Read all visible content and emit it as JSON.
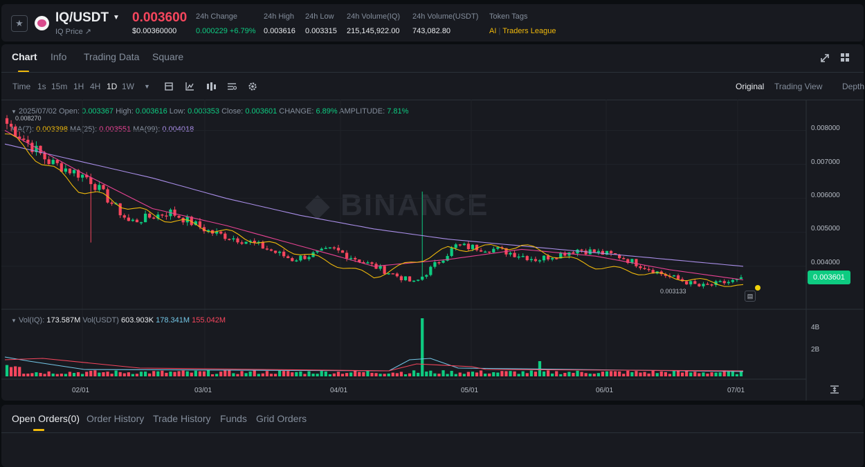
{
  "header": {
    "pair": "IQ/USDT",
    "sub": "IQ Price ↗",
    "price": "0.003600",
    "usd_price": "$0.00360000",
    "stats": [
      {
        "label": "24h Change",
        "value": "0.000229 +6.79%"
      },
      {
        "label": "24h High",
        "value": "0.003616"
      },
      {
        "label": "24h Low",
        "value": "0.003315"
      },
      {
        "label": "24h Volume(IQ)",
        "value": "215,145,922.00"
      },
      {
        "label": "24h Volume(USDT)",
        "value": "743,082.80"
      }
    ],
    "token_tags_label": "Token Tags",
    "tags": [
      "AI",
      "Traders League"
    ]
  },
  "tabs": [
    "Chart",
    "Info",
    "Trading Data",
    "Square"
  ],
  "intervals": [
    "Time",
    "1s",
    "15m",
    "1H",
    "4H",
    "1D",
    "1W"
  ],
  "active_interval": "1D",
  "views": [
    "Original",
    "Trading View",
    "Depth"
  ],
  "ohlc": {
    "date": "2025/07/02",
    "open_label": "Open:",
    "open": "0.003367",
    "high_label": "High:",
    "high": "0.003616",
    "low_label": "Low:",
    "low": "0.003353",
    "close_label": "Close:",
    "close": "0.003601",
    "change_label": "CHANGE:",
    "change": "6.89%",
    "amp_label": "AMPLITUDE:",
    "amp": "7.81%"
  },
  "ma": {
    "ma7_label": "MA(7):",
    "ma7": "0.003398",
    "ma25_label": "MA(25):",
    "ma25": "0.003551",
    "ma99_label": "MA(99):",
    "ma99": "0.004018"
  },
  "vol": {
    "label1": "Vol(IQ):",
    "v1": "173.587M",
    "label2": "Vol(USDT)",
    "v2": "603.903K",
    "v3": "178.341M",
    "v4": "155.042M"
  },
  "price_axis": [
    "0.008000",
    "0.007000",
    "0.006000",
    "0.005000",
    "0.004000"
  ],
  "vol_axis": [
    "4B",
    "2B"
  ],
  "date_axis": [
    "02/01",
    "03/01",
    "04/01",
    "05/01",
    "06/01",
    "07/01"
  ],
  "high_marker": "0.008270",
  "low_marker": "0.003133",
  "last_price_tag": "0.003601",
  "watermark": "BINANCE",
  "orders_tabs": [
    "Open Orders(0)",
    "Order History",
    "Trade History",
    "Funds",
    "Grid Orders"
  ],
  "colors": {
    "up": "#0ecb81",
    "down": "#f6465d",
    "ma7": "#f0b90b",
    "ma25": "#e84393",
    "ma99": "#a98ee8",
    "accent": "#f0b90b"
  },
  "icons": [
    "star-icon",
    "expand-icon",
    "grid-icon",
    "candle-type-icon",
    "indicator-icon",
    "settings-icon",
    "fit-icon"
  ],
  "chart_data": {
    "type": "candlestick",
    "interval": "1D",
    "x_range": [
      "2025/01/10",
      "2025/07/02"
    ],
    "ylim": [
      0.003,
      0.0085
    ],
    "series": [
      {
        "name": "MA(99)",
        "values": [
          0.0076,
          0.0071,
          0.0066,
          0.006,
          0.0055,
          0.0051,
          0.0048,
          0.0046,
          0.0044,
          0.0042,
          0.004
        ]
      },
      {
        "name": "MA(25)",
        "values": [
          0.008,
          0.0068,
          0.0057,
          0.0052,
          0.0046,
          0.004,
          0.0042,
          0.0045,
          0.0043,
          0.0039,
          0.0036
        ]
      },
      {
        "name": "MA(7)",
        "values": [
          0.0079,
          0.0063,
          0.0055,
          0.005,
          0.0044,
          0.0037,
          0.0045,
          0.0046,
          0.004,
          0.0037,
          0.0034
        ]
      }
    ],
    "close_path": [
      0.0082,
      0.0071,
      0.0066,
      0.0053,
      0.0056,
      0.005,
      0.0047,
      0.0042,
      0.0045,
      0.004,
      0.0035,
      0.0046,
      0.0045,
      0.0042,
      0.0045,
      0.0043,
      0.0038,
      0.0034,
      0.0036
    ],
    "volume_spikes": [
      {
        "date": "04/18",
        "value": "≈5B"
      },
      {
        "date": "05/22",
        "value": "≈1.2B"
      }
    ]
  }
}
